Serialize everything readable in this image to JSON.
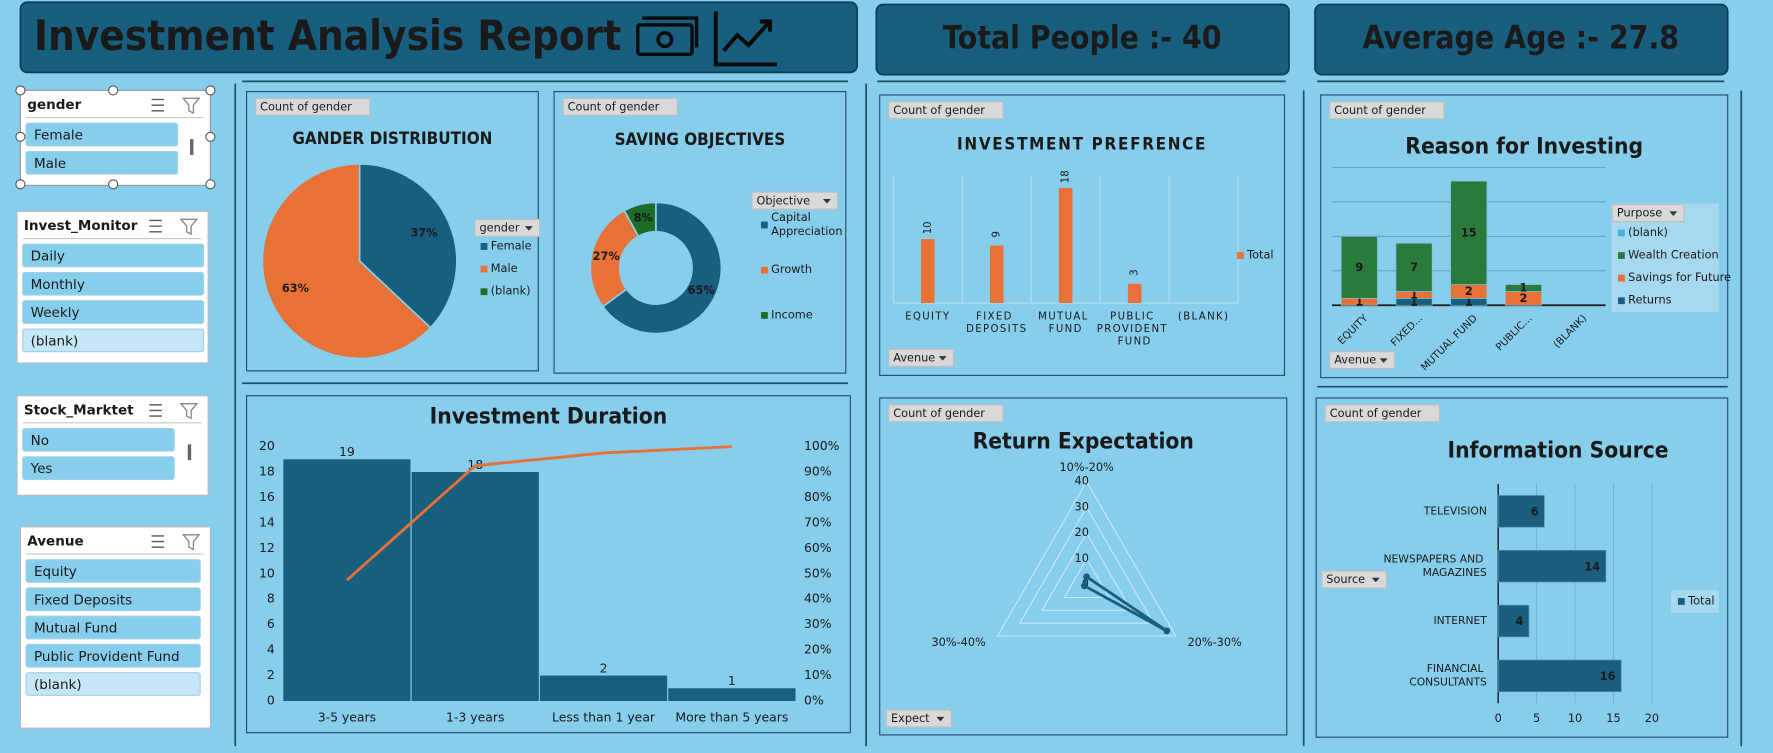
{
  "header": {
    "title": "Investment Analysis Report",
    "kpis": [
      "Total People :-  40",
      "Average Age :- 27.8"
    ]
  },
  "slicers": [
    {
      "title": "gender",
      "items": [
        "Female",
        "Male"
      ]
    },
    {
      "title": "Invest_Monitor",
      "items": [
        "Daily",
        "Monthly",
        "Weekly",
        "(blank)"
      ]
    },
    {
      "title": "Stock_Marktet",
      "items": [
        "No",
        "Yes"
      ]
    },
    {
      "title": "Avenue",
      "items": [
        "Equity",
        "Fixed Deposits",
        "Mutual Fund",
        "Public Provident Fund",
        "(blank)"
      ]
    }
  ],
  "chart_data": [
    {
      "type": "pie",
      "title": "GANDER DISTRIBUTION",
      "field_button": "Count of gender",
      "legend_title": "gender",
      "categories": [
        "Female",
        "Male",
        "(blank)"
      ],
      "values": [
        37,
        63,
        null
      ],
      "value_labels": [
        "37%",
        "63%",
        null
      ],
      "colors": [
        "#175e7f",
        "#e87136",
        "#1e6b2a"
      ]
    },
    {
      "type": "donut",
      "title": "SAVING OBJECTIVES",
      "field_button": "Count of gender",
      "legend_title": "Objective",
      "categories": [
        "Capital Appreciation",
        "Growth",
        "Income"
      ],
      "values": [
        65,
        27,
        8
      ],
      "value_labels": [
        "65%",
        "27%",
        "8%"
      ],
      "colors": [
        "#175e7f",
        "#e87136",
        "#1e6b2a"
      ]
    },
    {
      "type": "bar",
      "title": "INVESTMENT PREFRENCE",
      "field_button": "Count of gender",
      "filter_button": "Avenue",
      "categories": [
        "EQUITY",
        "FIXED DEPOSITS",
        "MUTUAL FUND",
        "PUBLIC PROVIDENT FUND",
        "(BLANK)"
      ],
      "series": [
        {
          "name": "Total",
          "color": "#e87136",
          "values": [
            10,
            9,
            18,
            3,
            null
          ]
        }
      ],
      "ylim": [
        0,
        20
      ]
    },
    {
      "type": "stacked_bar",
      "title": "Reason for Investing",
      "field_button": "Count of gender",
      "filter_button": "Avenue",
      "legend_title": "Purpose",
      "categories": [
        "EQUITY",
        "FIXED...",
        "MUTUAL FUND",
        "PUBLIC...",
        "(BLANK)"
      ],
      "series": [
        {
          "name": "(blank)",
          "color": "#45b0e0",
          "values": [
            null,
            null,
            null,
            null,
            null
          ]
        },
        {
          "name": "Wealth Creation",
          "color": "#2a7a3b",
          "values": [
            9,
            7,
            15,
            1,
            null
          ]
        },
        {
          "name": "Savings for Future",
          "color": "#e87136",
          "values": [
            1,
            1,
            2,
            2,
            null
          ]
        },
        {
          "name": "Returns",
          "color": "#175e7f",
          "values": [
            null,
            1,
            1,
            null,
            null
          ]
        }
      ],
      "ylim": [
        0,
        20
      ],
      "yticks": [
        0,
        5,
        10,
        15,
        20
      ],
      "grid": true
    },
    {
      "type": "combo",
      "title": "Investment Duration",
      "categories": [
        "3-5 years",
        "1-3 years",
        "Less than 1 year",
        "More than 5 years"
      ],
      "series": [
        {
          "type": "bar",
          "color": "#175e7f",
          "values": [
            19,
            18,
            2,
            1
          ]
        },
        {
          "type": "line",
          "axis": "y2",
          "color": "#e87136",
          "values": [
            47.5,
            92.5,
            97.5,
            100
          ]
        }
      ],
      "ylim": [
        0,
        20
      ],
      "yticks": [
        0,
        2,
        4,
        6,
        8,
        10,
        12,
        14,
        16,
        18,
        20
      ],
      "y2lim": [
        0,
        100
      ],
      "y2ticks": [
        {
          "value": 0,
          "label": "0%"
        },
        {
          "value": 10,
          "label": "10%"
        },
        {
          "value": 20,
          "label": "20%"
        },
        {
          "value": 30,
          "label": "30%"
        },
        {
          "value": 40,
          "label": "40%"
        },
        {
          "value": 50,
          "label": "50%"
        },
        {
          "value": 60,
          "label": "60%"
        },
        {
          "value": 70,
          "label": "70%"
        },
        {
          "value": 80,
          "label": "80%"
        },
        {
          "value": 90,
          "label": "90%"
        },
        {
          "value": 100,
          "label": "100%"
        }
      ]
    },
    {
      "type": "radar",
      "title": "Return Expectation",
      "field_button": "Count of gender",
      "filter_button": "Expect",
      "categories": [
        "10%-20%",
        "20%-30%",
        "30%-40%"
      ],
      "values": [
        3,
        36,
        1
      ],
      "color": "#175e7f",
      "rlim": [
        0,
        40
      ],
      "rticks": [
        0,
        10,
        20,
        30,
        40
      ]
    },
    {
      "type": "hbar",
      "title": "Information Source",
      "field_button": "Count of gender",
      "filter_button": "Source",
      "categories": [
        "TELEVISION",
        "NEWSPAPERS AND MAGAZINES",
        "INTERNET",
        "FINANCIAL CONSULTANTS"
      ],
      "series": [
        {
          "name": "Total",
          "color": "#1b5e7e",
          "values": [
            6,
            14,
            4,
            16
          ]
        }
      ],
      "xlim": [
        0,
        20
      ],
      "xticks": [
        0,
        5,
        10,
        15,
        20
      ],
      "grid": true
    }
  ]
}
